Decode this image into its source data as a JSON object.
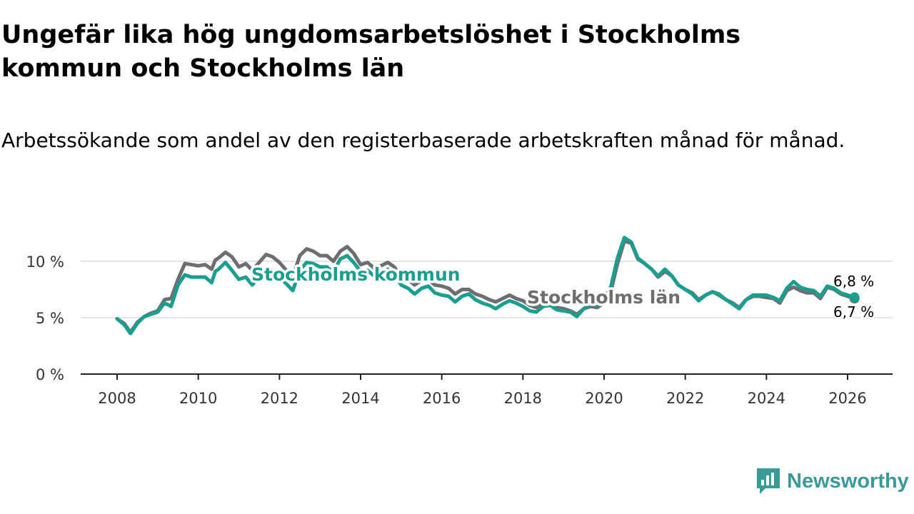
{
  "header": {
    "title": "Ungefär lika hög ungdomsarbetslöshet i Stockholms kommun och Stockholms län",
    "subtitle": "Arbetssökande som andel av den registerbaserade arbetskraften månad för månad."
  },
  "brand": {
    "name": "Newsworthy",
    "icon": "newsworthy-logo-icon",
    "color": "#3a9a95"
  },
  "chart_data": {
    "type": "line",
    "title": "Ungefär lika hög ungdomsarbetslöshet i Stockholms kommun och Stockholms län",
    "xlabel": "",
    "ylabel": "",
    "xlim": [
      2007.0,
      2027.1
    ],
    "ylim": [
      0,
      13
    ],
    "y_ticks": [
      0,
      5,
      10
    ],
    "y_tick_labels": [
      "0 %",
      "5 %",
      "10 %"
    ],
    "x_ticks": [
      2008,
      2010,
      2012,
      2014,
      2016,
      2018,
      2020,
      2022,
      2024,
      2026
    ],
    "x_tick_labels": [
      "2008",
      "2010",
      "2012",
      "2014",
      "2016",
      "2018",
      "2020",
      "2022",
      "2024",
      "2026"
    ],
    "grid": "horizontal",
    "series": [
      {
        "name": "Stockholms län",
        "color": "#6e6e72",
        "end_label": "6,7 %",
        "points": [
          [
            2008.0,
            4.9
          ],
          [
            2008.17,
            4.5
          ],
          [
            2008.33,
            3.7
          ],
          [
            2008.5,
            4.6
          ],
          [
            2008.67,
            5.1
          ],
          [
            2008.83,
            5.4
          ],
          [
            2009.0,
            5.6
          ],
          [
            2009.17,
            6.6
          ],
          [
            2009.33,
            6.7
          ],
          [
            2009.5,
            8.4
          ],
          [
            2009.67,
            9.8
          ],
          [
            2009.83,
            9.7
          ],
          [
            2010.0,
            9.6
          ],
          [
            2010.17,
            9.7
          ],
          [
            2010.33,
            9.3
          ],
          [
            2010.42,
            10.1
          ],
          [
            2010.5,
            10.3
          ],
          [
            2010.67,
            10.8
          ],
          [
            2010.83,
            10.4
          ],
          [
            2011.0,
            9.5
          ],
          [
            2011.17,
            9.8
          ],
          [
            2011.33,
            9.2
          ],
          [
            2011.5,
            9.9
          ],
          [
            2011.67,
            10.6
          ],
          [
            2011.83,
            10.4
          ],
          [
            2012.0,
            9.9
          ],
          [
            2012.17,
            9.2
          ],
          [
            2012.33,
            8.6
          ],
          [
            2012.5,
            10.5
          ],
          [
            2012.67,
            11.1
          ],
          [
            2012.83,
            10.9
          ],
          [
            2013.0,
            10.5
          ],
          [
            2013.17,
            10.5
          ],
          [
            2013.33,
            10.0
          ],
          [
            2013.5,
            10.9
          ],
          [
            2013.67,
            11.3
          ],
          [
            2013.83,
            10.7
          ],
          [
            2014.0,
            9.7
          ],
          [
            2014.17,
            9.9
          ],
          [
            2014.33,
            9.4
          ],
          [
            2014.5,
            9.6
          ],
          [
            2014.67,
            9.9
          ],
          [
            2014.83,
            9.5
          ],
          [
            2015.0,
            8.6
          ],
          [
            2015.17,
            8.4
          ],
          [
            2015.33,
            7.9
          ],
          [
            2015.5,
            8.3
          ],
          [
            2015.67,
            8.4
          ],
          [
            2015.83,
            7.9
          ],
          [
            2016.0,
            7.8
          ],
          [
            2016.17,
            7.6
          ],
          [
            2016.33,
            7.1
          ],
          [
            2016.5,
            7.5
          ],
          [
            2016.67,
            7.5
          ],
          [
            2016.83,
            7.1
          ],
          [
            2017.0,
            6.9
          ],
          [
            2017.17,
            6.6
          ],
          [
            2017.33,
            6.4
          ],
          [
            2017.5,
            6.7
          ],
          [
            2017.67,
            7.0
          ],
          [
            2017.83,
            6.7
          ],
          [
            2018.0,
            6.5
          ],
          [
            2018.17,
            6.1
          ],
          [
            2018.33,
            5.9
          ],
          [
            2018.5,
            6.3
          ],
          [
            2018.67,
            6.3
          ],
          [
            2018.83,
            5.9
          ],
          [
            2019.0,
            5.8
          ],
          [
            2019.17,
            5.6
          ],
          [
            2019.33,
            5.3
          ],
          [
            2019.5,
            5.8
          ],
          [
            2019.67,
            6.0
          ],
          [
            2019.83,
            5.9
          ],
          [
            2020.0,
            6.3
          ],
          [
            2020.17,
            7.4
          ],
          [
            2020.33,
            9.8
          ],
          [
            2020.5,
            11.8
          ],
          [
            2020.67,
            11.6
          ],
          [
            2020.83,
            10.2
          ],
          [
            2021.0,
            9.8
          ],
          [
            2021.17,
            9.3
          ],
          [
            2021.33,
            8.6
          ],
          [
            2021.5,
            9.1
          ],
          [
            2021.67,
            8.7
          ],
          [
            2021.83,
            7.9
          ],
          [
            2022.0,
            7.5
          ],
          [
            2022.17,
            7.2
          ],
          [
            2022.33,
            6.6
          ],
          [
            2022.5,
            7.0
          ],
          [
            2022.67,
            7.3
          ],
          [
            2022.83,
            7.0
          ],
          [
            2023.0,
            6.6
          ],
          [
            2023.17,
            6.3
          ],
          [
            2023.33,
            5.9
          ],
          [
            2023.5,
            6.6
          ],
          [
            2023.67,
            6.9
          ],
          [
            2023.83,
            6.9
          ],
          [
            2024.0,
            6.8
          ],
          [
            2024.17,
            6.7
          ],
          [
            2024.33,
            6.3
          ],
          [
            2024.5,
            7.4
          ],
          [
            2024.67,
            7.7
          ],
          [
            2024.83,
            7.4
          ],
          [
            2025.0,
            7.2
          ],
          [
            2025.17,
            7.2
          ],
          [
            2025.33,
            6.7
          ],
          [
            2025.5,
            7.7
          ],
          [
            2025.67,
            7.5
          ],
          [
            2025.83,
            7.1
          ],
          [
            2026.0,
            6.9
          ],
          [
            2026.17,
            6.7
          ]
        ]
      },
      {
        "name": "Stockholms kommun",
        "color": "#1a9e8f",
        "end_label": "6,8 %",
        "points": [
          [
            2008.0,
            4.9
          ],
          [
            2008.17,
            4.4
          ],
          [
            2008.33,
            3.6
          ],
          [
            2008.5,
            4.5
          ],
          [
            2008.67,
            5.1
          ],
          [
            2008.83,
            5.3
          ],
          [
            2009.0,
            5.5
          ],
          [
            2009.17,
            6.3
          ],
          [
            2009.33,
            6.0
          ],
          [
            2009.5,
            7.9
          ],
          [
            2009.67,
            8.8
          ],
          [
            2009.83,
            8.6
          ],
          [
            2010.0,
            8.6
          ],
          [
            2010.17,
            8.6
          ],
          [
            2010.33,
            8.1
          ],
          [
            2010.42,
            9.1
          ],
          [
            2010.5,
            9.3
          ],
          [
            2010.67,
            9.9
          ],
          [
            2010.83,
            9.2
          ],
          [
            2011.0,
            8.4
          ],
          [
            2011.17,
            8.6
          ],
          [
            2011.33,
            7.9
          ],
          [
            2011.5,
            8.7
          ],
          [
            2011.67,
            9.4
          ],
          [
            2011.83,
            9.2
          ],
          [
            2012.0,
            8.6
          ],
          [
            2012.17,
            8.0
          ],
          [
            2012.33,
            7.4
          ],
          [
            2012.5,
            9.2
          ],
          [
            2012.67,
            9.9
          ],
          [
            2012.83,
            9.8
          ],
          [
            2013.0,
            9.5
          ],
          [
            2013.17,
            9.5
          ],
          [
            2013.33,
            9.0
          ],
          [
            2013.5,
            10.2
          ],
          [
            2013.67,
            10.5
          ],
          [
            2013.83,
            9.9
          ],
          [
            2014.0,
            9.1
          ],
          [
            2014.17,
            9.2
          ],
          [
            2014.33,
            8.7
          ],
          [
            2014.5,
            8.9
          ],
          [
            2014.67,
            9.3
          ],
          [
            2014.83,
            8.8
          ],
          [
            2015.0,
            7.9
          ],
          [
            2015.17,
            7.6
          ],
          [
            2015.33,
            7.1
          ],
          [
            2015.5,
            7.6
          ],
          [
            2015.67,
            7.8
          ],
          [
            2015.83,
            7.2
          ],
          [
            2016.0,
            7.0
          ],
          [
            2016.17,
            6.9
          ],
          [
            2016.33,
            6.4
          ],
          [
            2016.5,
            6.9
          ],
          [
            2016.67,
            7.1
          ],
          [
            2016.83,
            6.6
          ],
          [
            2017.0,
            6.3
          ],
          [
            2017.17,
            6.1
          ],
          [
            2017.33,
            5.8
          ],
          [
            2017.5,
            6.2
          ],
          [
            2017.67,
            6.5
          ],
          [
            2017.83,
            6.3
          ],
          [
            2018.0,
            6.0
          ],
          [
            2018.17,
            5.6
          ],
          [
            2018.33,
            5.5
          ],
          [
            2018.5,
            6.0
          ],
          [
            2018.67,
            6.1
          ],
          [
            2018.83,
            5.7
          ],
          [
            2019.0,
            5.6
          ],
          [
            2019.17,
            5.5
          ],
          [
            2019.33,
            5.1
          ],
          [
            2019.5,
            5.8
          ],
          [
            2019.67,
            6.2
          ],
          [
            2019.83,
            6.1
          ],
          [
            2020.0,
            6.5
          ],
          [
            2020.17,
            7.8
          ],
          [
            2020.33,
            10.3
          ],
          [
            2020.5,
            12.1
          ],
          [
            2020.67,
            11.7
          ],
          [
            2020.83,
            10.3
          ],
          [
            2021.0,
            9.8
          ],
          [
            2021.17,
            9.3
          ],
          [
            2021.33,
            8.7
          ],
          [
            2021.5,
            9.3
          ],
          [
            2021.67,
            8.7
          ],
          [
            2021.83,
            7.9
          ],
          [
            2022.0,
            7.5
          ],
          [
            2022.17,
            7.1
          ],
          [
            2022.33,
            6.5
          ],
          [
            2022.5,
            7.0
          ],
          [
            2022.67,
            7.3
          ],
          [
            2022.83,
            7.1
          ],
          [
            2023.0,
            6.6
          ],
          [
            2023.17,
            6.2
          ],
          [
            2023.33,
            5.8
          ],
          [
            2023.5,
            6.6
          ],
          [
            2023.67,
            7.0
          ],
          [
            2023.83,
            7.0
          ],
          [
            2024.0,
            7.0
          ],
          [
            2024.17,
            6.8
          ],
          [
            2024.33,
            6.5
          ],
          [
            2024.5,
            7.6
          ],
          [
            2024.67,
            8.2
          ],
          [
            2024.83,
            7.7
          ],
          [
            2025.0,
            7.5
          ],
          [
            2025.17,
            7.4
          ],
          [
            2025.33,
            6.9
          ],
          [
            2025.5,
            7.8
          ],
          [
            2025.67,
            7.6
          ],
          [
            2025.83,
            7.2
          ],
          [
            2026.0,
            7.0
          ],
          [
            2026.17,
            6.8
          ]
        ]
      }
    ]
  }
}
